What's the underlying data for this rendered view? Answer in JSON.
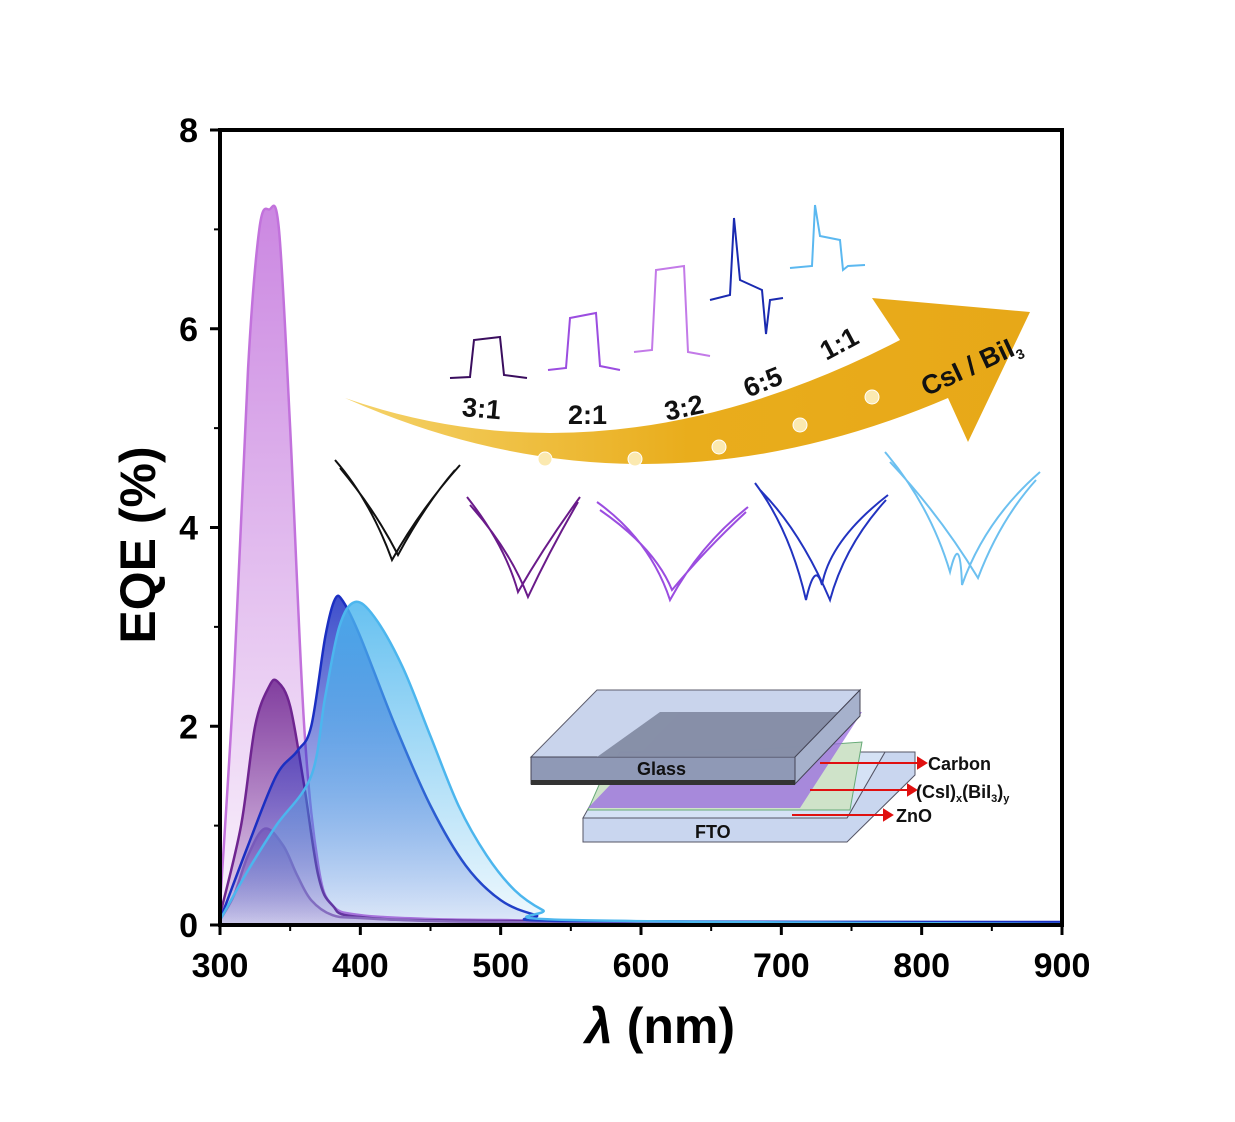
{
  "chart_data": {
    "type": "area",
    "xlabel_symbol": "λ",
    "xlabel_unit": "(nm)",
    "ylabel": "EQE (%)",
    "xlim": [
      300,
      900
    ],
    "ylim": [
      0,
      8
    ],
    "xticks": [
      "300",
      "400",
      "500",
      "600",
      "700",
      "800",
      "900"
    ],
    "yticks": [
      "0",
      "2",
      "4",
      "6",
      "8"
    ],
    "legend_arrow_label": "CsI / BiI",
    "legend_arrow_sub": "3",
    "series": [
      {
        "name": "3:2",
        "color": "#c272dc",
        "x": [
          300,
          310,
          320,
          328,
          335,
          342,
          350,
          360,
          370,
          380,
          400,
          450,
          500,
          600,
          900
        ],
        "y": [
          0.2,
          2.5,
          5.6,
          7.0,
          7.2,
          7.0,
          5.0,
          2.0,
          0.6,
          0.2,
          0.1,
          0.06,
          0.05,
          0.03,
          0.02
        ]
      },
      {
        "name": "2:1",
        "color": "#6f2590",
        "x": [
          300,
          315,
          325,
          335,
          341,
          350,
          360,
          370,
          380,
          400,
          500,
          900
        ],
        "y": [
          0.1,
          1.0,
          2.0,
          2.4,
          2.45,
          2.2,
          1.4,
          0.5,
          0.2,
          0.08,
          0.04,
          0.02
        ]
      },
      {
        "name": "3:1",
        "color": "#9a6ab8",
        "x": [
          300,
          310,
          320,
          332,
          345,
          355,
          365,
          380,
          400,
          450,
          500,
          600,
          900
        ],
        "y": [
          0.05,
          0.3,
          0.7,
          0.97,
          0.8,
          0.5,
          0.25,
          0.1,
          0.07,
          0.04,
          0.03,
          0.02,
          0.01
        ]
      },
      {
        "name": "6:5",
        "color": "#1b2fc2",
        "x": [
          300,
          320,
          340,
          355,
          365,
          375,
          382,
          388,
          400,
          425,
          450,
          475,
          500,
          525,
          550,
          900
        ],
        "y": [
          0.05,
          0.8,
          1.5,
          1.75,
          2.0,
          2.9,
          3.28,
          3.25,
          2.9,
          2.0,
          1.2,
          0.6,
          0.25,
          0.1,
          0.04,
          0.03
        ]
      },
      {
        "name": "1:1",
        "color": "#4cb6ee",
        "x": [
          300,
          320,
          340,
          365,
          375,
          385,
          396,
          410,
          430,
          450,
          470,
          490,
          510,
          530,
          550,
          900
        ],
        "y": [
          0.05,
          0.55,
          1.0,
          1.5,
          2.3,
          3.0,
          3.25,
          3.1,
          2.6,
          1.9,
          1.2,
          0.7,
          0.35,
          0.15,
          0.05,
          0.01
        ]
      }
    ],
    "ratio_labels": [
      "3:1",
      "2:1",
      "3:2",
      "6:5",
      "1:1"
    ],
    "device_layers": {
      "glass": "Glass",
      "carbon": "Carbon",
      "absorber": "(CsI)",
      "absorber_x": "x",
      "absorber_mid": "(BiI",
      "absorber_3": "3",
      "absorber_close": ")",
      "absorber_y": "y",
      "zno": "ZnO",
      "fto": "FTO"
    }
  }
}
